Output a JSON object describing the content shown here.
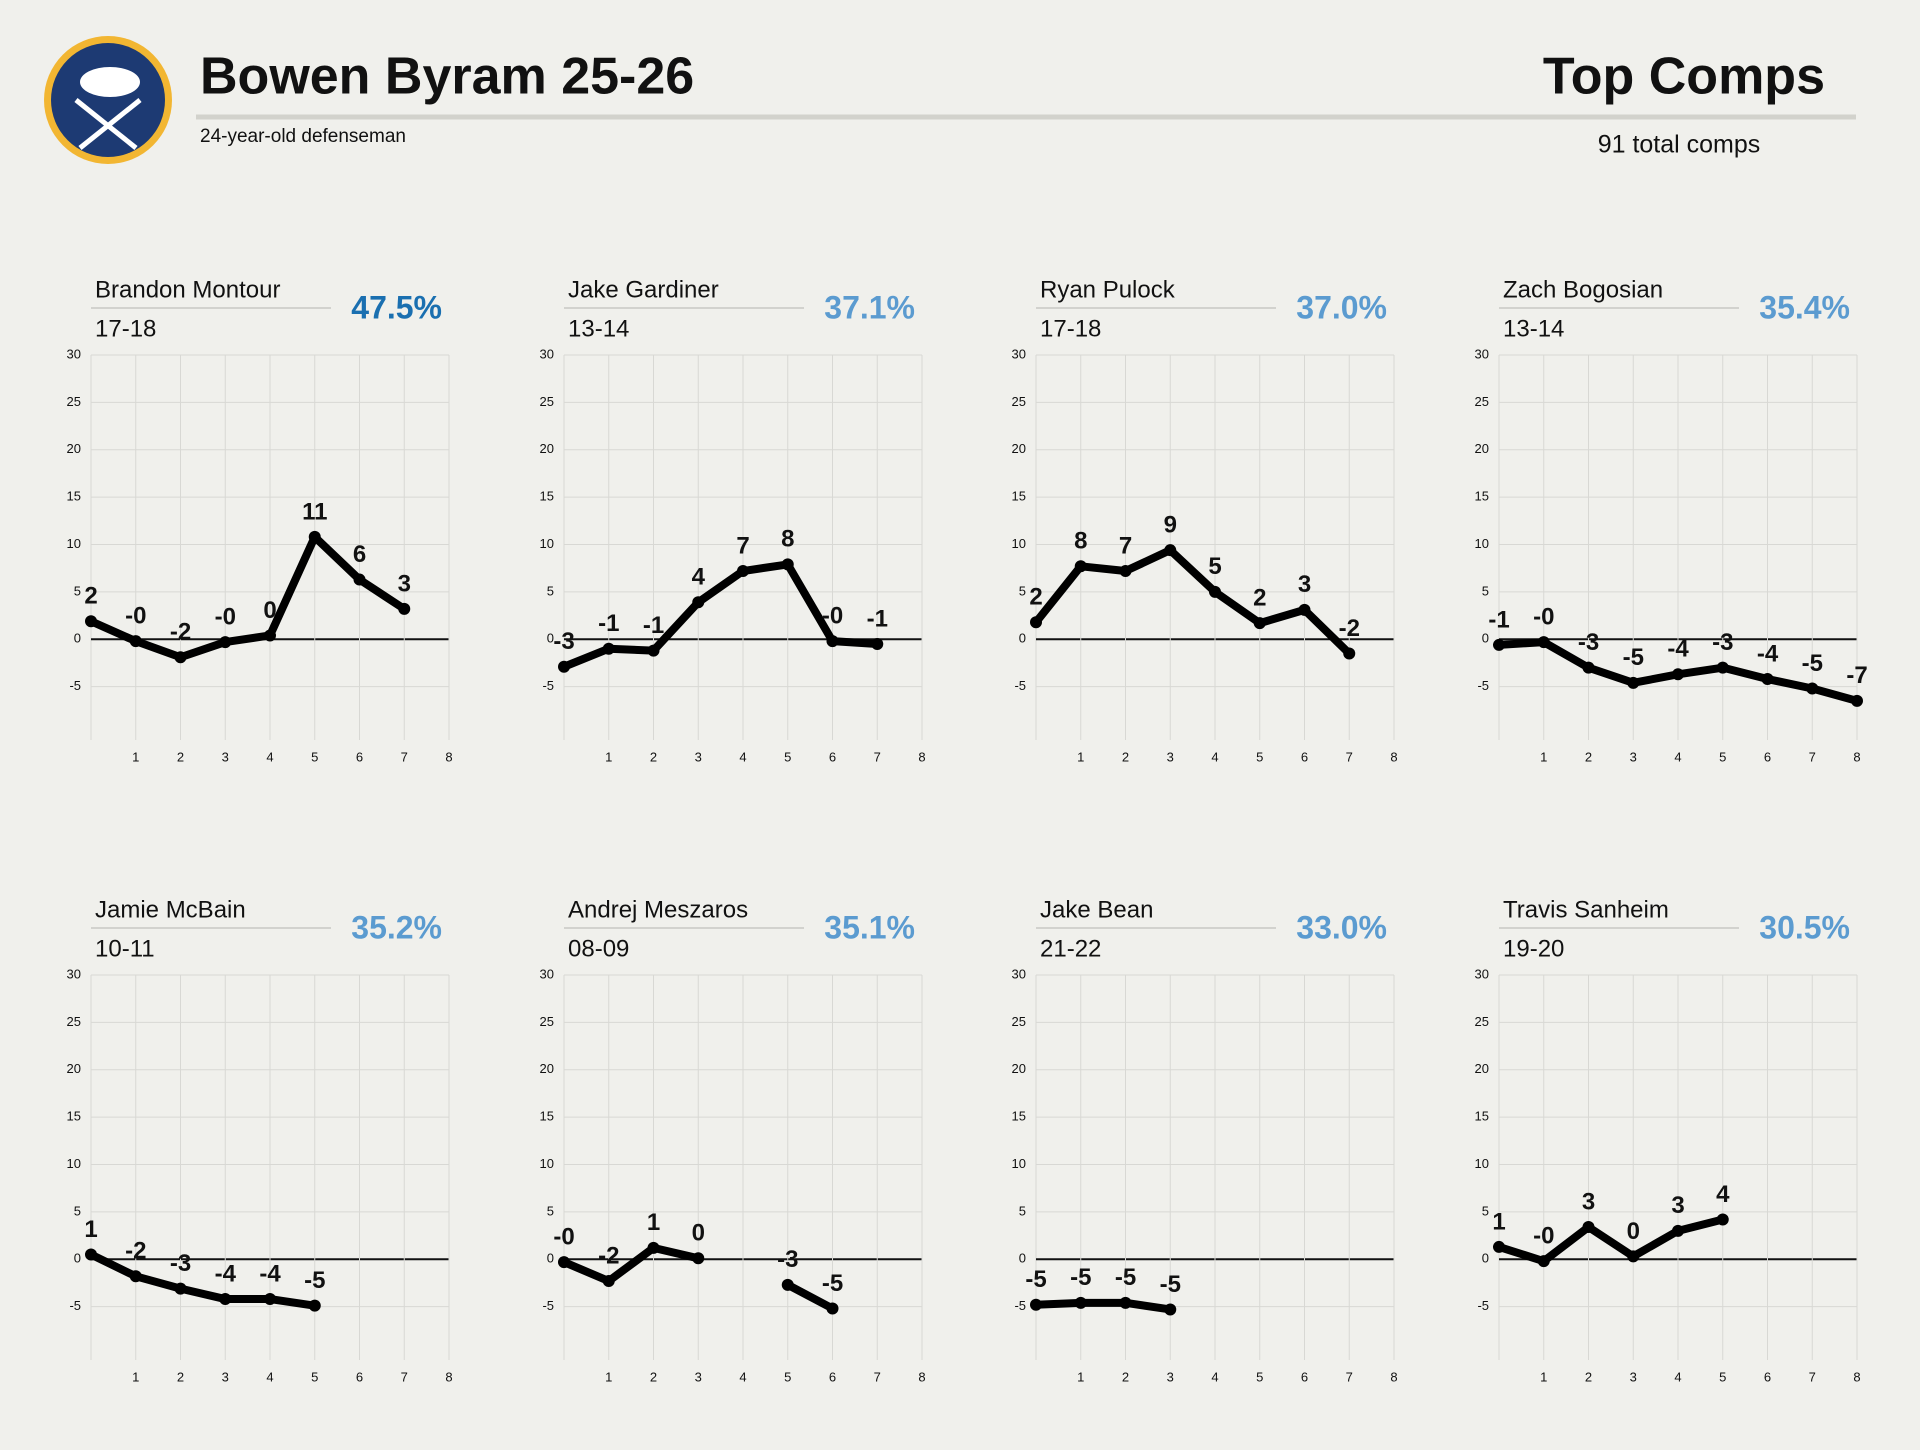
{
  "header": {
    "title": "Bowen Byram 25-26",
    "subtitle": "24-year-old defenseman",
    "section": "Top Comps",
    "note": "91 total comps"
  },
  "chart_data": [
    {
      "type": "line",
      "title": "Brandon Montour",
      "subtitle": "17-18",
      "annotation": "47.5%",
      "annotation_color": "#1a6fb0",
      "color": "#000000",
      "grid": true,
      "x": [
        0,
        1,
        2,
        3,
        4,
        5,
        6,
        7
      ],
      "values": [
        1.9,
        -0.2,
        -1.9,
        -0.3,
        0.4,
        10.8,
        6.3,
        3.2
      ],
      "value_labels": [
        "2",
        "-0",
        "-2",
        "-0",
        "0",
        "11",
        "6",
        "3"
      ],
      "xlim": [
        0,
        8
      ],
      "xticks": [
        1,
        2,
        3,
        4,
        5,
        6,
        7,
        8
      ],
      "ylim": [
        -10,
        30
      ],
      "yticks": [
        -5,
        0,
        5,
        10,
        15,
        20,
        25,
        30
      ]
    },
    {
      "type": "line",
      "title": "Jake Gardiner",
      "subtitle": "13-14",
      "annotation": "37.1%",
      "annotation_color": "#5b9bd0",
      "color": "#000000",
      "grid": true,
      "x": [
        0,
        1,
        2,
        3,
        4,
        5,
        6,
        7
      ],
      "values": [
        -2.9,
        -1.0,
        -1.2,
        3.9,
        7.2,
        7.9,
        -0.2,
        -0.5
      ],
      "value_labels": [
        "-3",
        "-1",
        "-1",
        "4",
        "7",
        "8",
        "-0",
        "-1"
      ],
      "xlim": [
        0,
        8
      ],
      "xticks": [
        1,
        2,
        3,
        4,
        5,
        6,
        7,
        8
      ],
      "ylim": [
        -10,
        30
      ],
      "yticks": [
        -5,
        0,
        5,
        10,
        15,
        20,
        25,
        30
      ]
    },
    {
      "type": "line",
      "title": "Ryan Pulock",
      "subtitle": "17-18",
      "annotation": "37.0%",
      "annotation_color": "#5b9bd0",
      "color": "#000000",
      "grid": true,
      "x": [
        0,
        1,
        2,
        3,
        4,
        5,
        6,
        7
      ],
      "values": [
        1.8,
        7.7,
        7.2,
        9.4,
        5.0,
        1.7,
        3.1,
        -1.5
      ],
      "value_labels": [
        "2",
        "8",
        "7",
        "9",
        "5",
        "2",
        "3",
        "-2"
      ],
      "xlim": [
        0,
        8
      ],
      "xticks": [
        1,
        2,
        3,
        4,
        5,
        6,
        7,
        8
      ],
      "ylim": [
        -10,
        30
      ],
      "yticks": [
        -5,
        0,
        5,
        10,
        15,
        20,
        25,
        30
      ]
    },
    {
      "type": "line",
      "title": "Zach Bogosian",
      "subtitle": "13-14",
      "annotation": "35.4%",
      "annotation_color": "#5b9bd0",
      "color": "#000000",
      "grid": true,
      "x": [
        0,
        1,
        2,
        3,
        4,
        5,
        6,
        7,
        8
      ],
      "values": [
        -0.6,
        -0.3,
        -3.0,
        -4.6,
        -3.7,
        -3.0,
        -4.2,
        -5.2,
        -6.5
      ],
      "value_labels": [
        "-1",
        "-0",
        "-3",
        "-5",
        "-4",
        "-3",
        "-4",
        "-5",
        "-7"
      ],
      "xlim": [
        0,
        8
      ],
      "xticks": [
        1,
        2,
        3,
        4,
        5,
        6,
        7,
        8
      ],
      "ylim": [
        -10,
        30
      ],
      "yticks": [
        -5,
        0,
        5,
        10,
        15,
        20,
        25,
        30
      ]
    },
    {
      "type": "line",
      "title": "Jamie McBain",
      "subtitle": "10-11",
      "annotation": "35.2%",
      "annotation_color": "#5b9bd0",
      "color": "#000000",
      "grid": true,
      "x": [
        0,
        1,
        2,
        3,
        4,
        5
      ],
      "values": [
        0.5,
        -1.8,
        -3.1,
        -4.2,
        -4.2,
        -4.9
      ],
      "value_labels": [
        "1",
        "-2",
        "-3",
        "-4",
        "-4",
        "-5"
      ],
      "xlim": [
        0,
        8
      ],
      "xticks": [
        1,
        2,
        3,
        4,
        5,
        6,
        7,
        8
      ],
      "ylim": [
        -10,
        30
      ],
      "yticks": [
        -5,
        0,
        5,
        10,
        15,
        20,
        25,
        30
      ]
    },
    {
      "type": "line",
      "title": "Andrej Meszaros",
      "subtitle": "08-09",
      "annotation": "35.1%",
      "annotation_color": "#5b9bd0",
      "color": "#000000",
      "grid": true,
      "x": [
        0,
        1,
        2,
        3,
        4,
        5,
        6
      ],
      "values": [
        -0.3,
        -2.3,
        1.2,
        0.1,
        null,
        -2.7,
        -5.2
      ],
      "value_labels": [
        "-0",
        "-2",
        "1",
        "0",
        null,
        "-3",
        "-5"
      ],
      "xlim": [
        0,
        8
      ],
      "xticks": [
        1,
        2,
        3,
        4,
        5,
        6,
        7,
        8
      ],
      "ylim": [
        -10,
        30
      ],
      "yticks": [
        -5,
        0,
        5,
        10,
        15,
        20,
        25,
        30
      ]
    },
    {
      "type": "line",
      "title": "Jake Bean",
      "subtitle": "21-22",
      "annotation": "33.0%",
      "annotation_color": "#5b9bd0",
      "color": "#000000",
      "grid": true,
      "x": [
        0,
        1,
        2,
        3
      ],
      "values": [
        -4.8,
        -4.6,
        -4.6,
        -5.3
      ],
      "value_labels": [
        "-5",
        "-5",
        "-5",
        "-5"
      ],
      "xlim": [
        0,
        8
      ],
      "xticks": [
        1,
        2,
        3,
        4,
        5,
        6,
        7,
        8
      ],
      "ylim": [
        -10,
        30
      ],
      "yticks": [
        -5,
        0,
        5,
        10,
        15,
        20,
        25,
        30
      ]
    },
    {
      "type": "line",
      "title": "Travis Sanheim",
      "subtitle": "19-20",
      "annotation": "30.5%",
      "annotation_color": "#5b9bd0",
      "color": "#000000",
      "grid": true,
      "x": [
        0,
        1,
        2,
        3,
        4,
        5
      ],
      "values": [
        1.3,
        -0.2,
        3.4,
        0.3,
        3.0,
        4.2
      ],
      "value_labels": [
        "1",
        "-0",
        "3",
        "0",
        "3",
        "4"
      ],
      "xlim": [
        0,
        8
      ],
      "xticks": [
        1,
        2,
        3,
        4,
        5,
        6,
        7,
        8
      ],
      "ylim": [
        -10,
        30
      ],
      "yticks": [
        -5,
        0,
        5,
        10,
        15,
        20,
        25,
        30
      ]
    }
  ]
}
